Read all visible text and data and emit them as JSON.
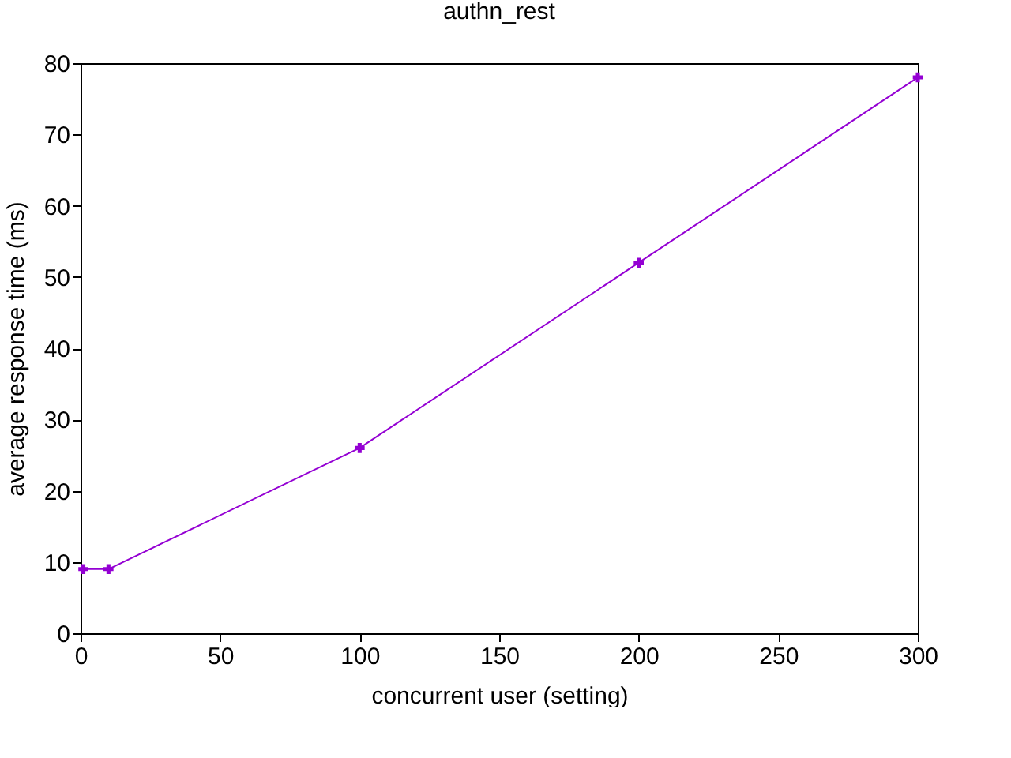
{
  "chart_data": {
    "type": "line",
    "title": "authn_rest",
    "xlabel": "concurrent user (setting)",
    "ylabel": "average response time (ms)",
    "x": [
      1,
      10,
      100,
      200,
      300
    ],
    "series": [
      {
        "color": "#9400d3",
        "values": [
          9,
          9,
          26,
          52,
          78
        ]
      }
    ],
    "xlim": [
      0,
      300
    ],
    "xticks": [
      0,
      50,
      100,
      150,
      200,
      250,
      300
    ],
    "ylim": [
      0,
      80
    ],
    "yticks": [
      0,
      10,
      20,
      30,
      40,
      50,
      60,
      70,
      80
    ],
    "grid": false,
    "marker": "cross",
    "line_style": "solid"
  }
}
